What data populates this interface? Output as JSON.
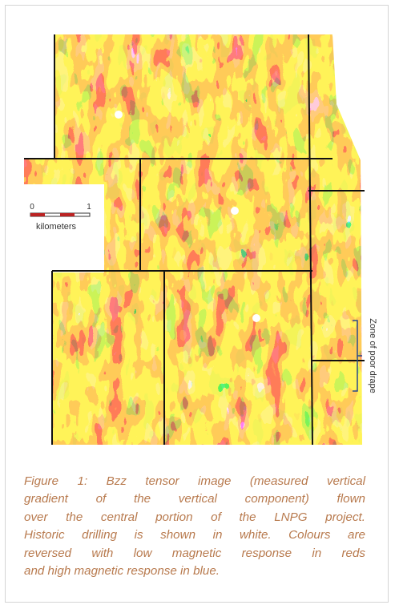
{
  "figure": {
    "scale_labels": [
      "0",
      "1"
    ],
    "scale_unit": "kilometers",
    "annotation": "Zone of poor drape"
  },
  "caption": {
    "lines": [
      "Figure 1: Bzz tensor image (measured vertical",
      "gradient of the vertical component) flown",
      "over the central portion of the LNPG project.",
      "Historic drilling is shown in white. Colours are",
      "reversed with low magnetic response in reds",
      "and high magnetic response in blue."
    ]
  }
}
